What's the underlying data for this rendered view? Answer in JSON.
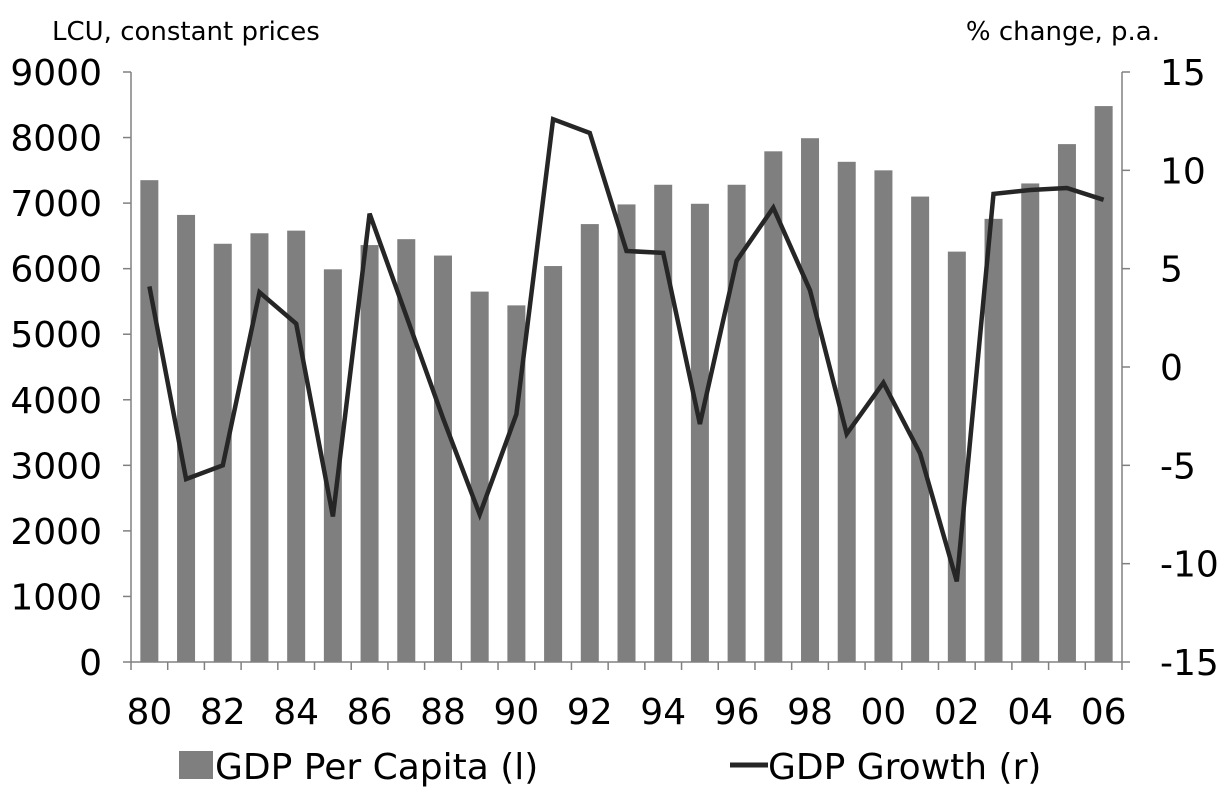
{
  "chart_data": {
    "type": "bar",
    "title": "",
    "y_left_label": "LCU, constant prices",
    "y_right_label": "% change, p.a.",
    "categories": [
      "80",
      "81",
      "82",
      "83",
      "84",
      "85",
      "86",
      "87",
      "88",
      "89",
      "90",
      "91",
      "92",
      "93",
      "94",
      "95",
      "96",
      "97",
      "98",
      "99",
      "00",
      "01",
      "02",
      "03",
      "04",
      "05",
      "06"
    ],
    "x_tick_labels": [
      "80",
      "82",
      "84",
      "86",
      "88",
      "90",
      "92",
      "94",
      "96",
      "98",
      "00",
      "02",
      "04",
      "06"
    ],
    "ylim_left": [
      0,
      9000
    ],
    "yticks_left": [
      0,
      1000,
      2000,
      3000,
      4000,
      5000,
      6000,
      7000,
      8000,
      9000
    ],
    "ylim_right": [
      -15,
      15
    ],
    "yticks_right": [
      -15,
      -10,
      -5,
      0,
      5,
      10,
      15
    ],
    "grid": false,
    "legend_position": "bottom",
    "series": [
      {
        "name": "GDP Per Capita (l)",
        "type": "bar",
        "axis": "left",
        "color": "#7f7f7f",
        "values": [
          7350,
          6820,
          6380,
          6540,
          6580,
          5990,
          6360,
          6450,
          6200,
          5650,
          5440,
          6040,
          6680,
          6980,
          7280,
          6990,
          7280,
          7790,
          7990,
          7630,
          7500,
          7100,
          6260,
          6760,
          7300,
          7900,
          8480
        ]
      },
      {
        "name": "GDP Growth (r)",
        "type": "line",
        "axis": "right",
        "color": "#262626",
        "values": [
          4.1,
          -5.7,
          -5.0,
          3.8,
          2.2,
          -7.6,
          7.8,
          2.6,
          -2.6,
          -7.5,
          -2.4,
          12.6,
          11.9,
          5.9,
          5.8,
          -2.9,
          5.4,
          8.1,
          3.9,
          -3.4,
          -0.8,
          -4.4,
          -10.9,
          8.8,
          9.0,
          9.1,
          8.5
        ]
      }
    ]
  }
}
